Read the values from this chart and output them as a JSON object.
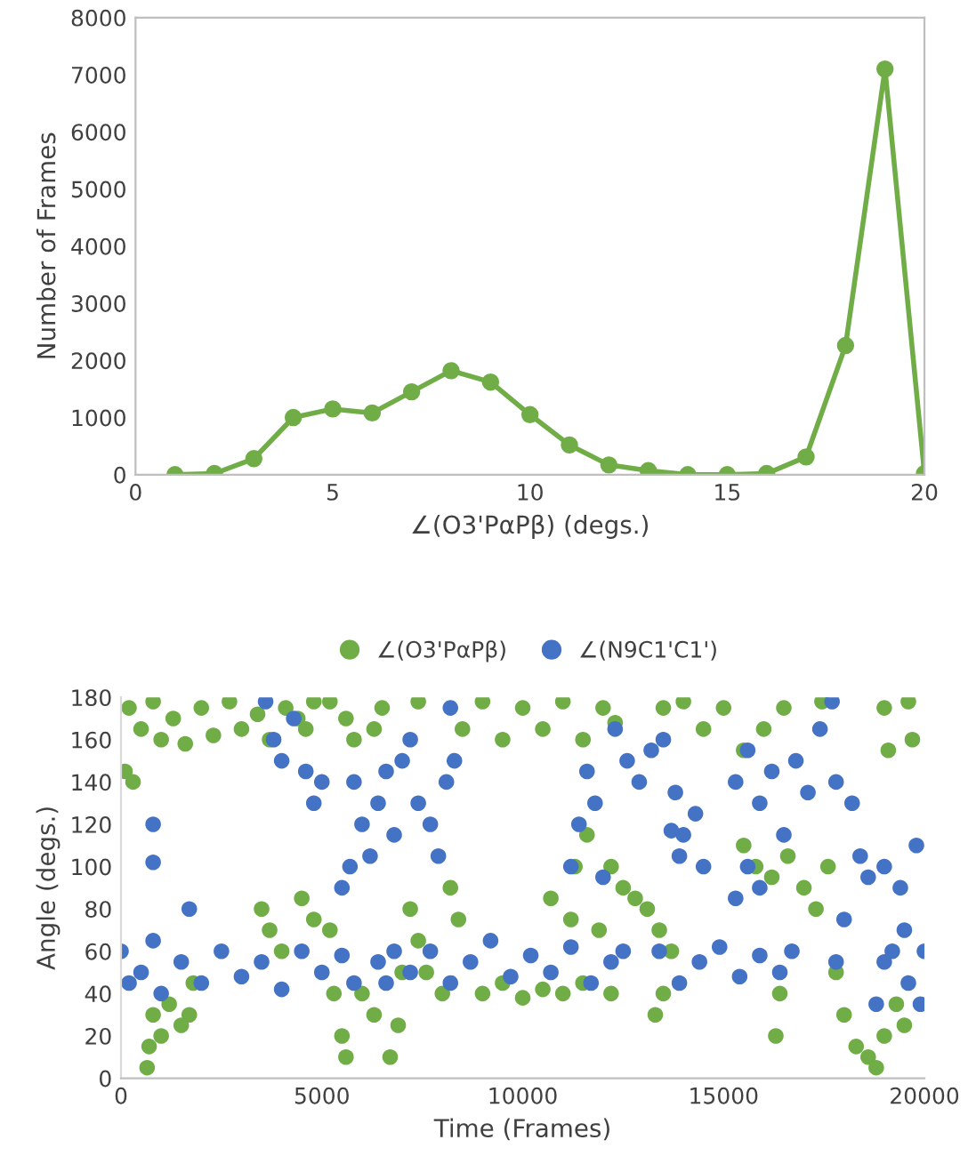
{
  "chart_data": [
    {
      "type": "line",
      "xlabel": "∠(O3'PαPβ) (degs.)",
      "ylabel": "Number of Frames",
      "marker": "circle",
      "line_style": "solid",
      "grid": false,
      "legend": false,
      "xlim": [
        0,
        20
      ],
      "xticks": [
        0,
        5,
        10,
        15,
        20
      ],
      "ylim": [
        0,
        8000
      ],
      "yticks": [
        0,
        1000,
        2000,
        3000,
        4000,
        5000,
        6000,
        7000,
        8000
      ],
      "x": [
        1,
        2,
        3,
        4,
        5,
        6,
        7,
        8,
        9,
        10,
        11,
        12,
        13,
        14,
        15,
        16,
        17,
        18,
        19,
        20
      ],
      "series": [
        {
          "color": "#70ad47",
          "values": [
            0,
            20,
            280,
            1000,
            1150,
            1080,
            1450,
            1820,
            1620,
            1050,
            520,
            170,
            70,
            0,
            0,
            20,
            310,
            2260,
            7100,
            20
          ]
        }
      ]
    },
    {
      "type": "scatter",
      "xlabel": "Time (Frames)",
      "ylabel": "Angle (degs.)",
      "marker": "circle",
      "grid": false,
      "legend": "top",
      "xlim": [
        0,
        20000
      ],
      "xticks": [
        0,
        5000,
        10000,
        15000,
        20000
      ],
      "ylim": [
        0,
        180
      ],
      "yticks": [
        0,
        20,
        40,
        60,
        80,
        100,
        120,
        140,
        160,
        180
      ],
      "series": [
        {
          "name": "∠(O3'PαPβ)",
          "color": "#70ad47",
          "x": [
            100,
            200,
            300,
            500,
            800,
            1000,
            1300,
            1600,
            2000,
            2300,
            2700,
            3000,
            3400,
            3700,
            650,
            700,
            800,
            1000,
            1200,
            1500,
            1700,
            1800,
            3500,
            3700,
            4000,
            4500,
            4800,
            5200,
            5500,
            5600,
            5300,
            4100,
            4400,
            4600,
            4800,
            5200,
            5600,
            5800,
            6300,
            6500,
            6000,
            6300,
            6700,
            6900,
            7000,
            7200,
            7400,
            7600,
            8000,
            8200,
            8400,
            7400,
            8500,
            9000,
            9500,
            10000,
            10500,
            11000,
            11500,
            12000,
            12300,
            9000,
            9500,
            10000,
            10500,
            10700,
            11000,
            11200,
            11500,
            11900,
            12200,
            11300,
            11600,
            12200,
            12500,
            12800,
            13100,
            13400,
            13700,
            13300,
            13500,
            13500,
            14000,
            14500,
            15000,
            15500,
            16000,
            16500,
            15500,
            15800,
            16200,
            16600,
            17000,
            17300,
            17600,
            16300,
            16400,
            17450,
            17800,
            18000,
            18300,
            18600,
            18800,
            19000,
            19300,
            19500,
            19000,
            19100,
            19600,
            19700
          ],
          "values": [
            145,
            175,
            140,
            165,
            178,
            160,
            170,
            158,
            175,
            162,
            178,
            165,
            172,
            160,
            5,
            15,
            30,
            20,
            35,
            25,
            30,
            45,
            80,
            70,
            60,
            85,
            75,
            70,
            20,
            10,
            40,
            175,
            170,
            165,
            178,
            178,
            170,
            160,
            165,
            175,
            40,
            30,
            10,
            25,
            50,
            80,
            65,
            50,
            40,
            90,
            75,
            178,
            165,
            178,
            160,
            175,
            165,
            178,
            160,
            175,
            168,
            40,
            45,
            38,
            42,
            85,
            40,
            75,
            45,
            70,
            40,
            100,
            115,
            100,
            90,
            85,
            80,
            70,
            60,
            30,
            40,
            175,
            178,
            165,
            175,
            155,
            165,
            175,
            110,
            100,
            95,
            105,
            90,
            80,
            100,
            20,
            40,
            178,
            50,
            30,
            15,
            10,
            5,
            20,
            35,
            25,
            175,
            155,
            178,
            160
          ]
        },
        {
          "name": "∠(N9C1'C1')",
          "color": "#4472c4",
          "x": [
            0,
            200,
            500,
            800,
            1000,
            1500,
            2000,
            2500,
            3000,
            3500,
            4000,
            4500,
            5000,
            5500,
            5800,
            800,
            800,
            1700,
            3600,
            3800,
            4000,
            4300,
            4600,
            4800,
            5000,
            5500,
            5700,
            5800,
            6000,
            6200,
            6400,
            6600,
            6800,
            7000,
            7200,
            7400,
            7700,
            7900,
            8100,
            8200,
            8300,
            6400,
            6600,
            6800,
            7200,
            7700,
            8200,
            8700,
            9200,
            9700,
            10200,
            10700,
            11200,
            11700,
            12200,
            12500,
            11200,
            11400,
            11600,
            11800,
            12000,
            12300,
            12600,
            12900,
            13200,
            13500,
            13800,
            14000,
            14300,
            14500,
            13900,
            13700,
            13400,
            13900,
            14400,
            14900,
            15400,
            15900,
            16400,
            16700,
            15300,
            15600,
            15900,
            16200,
            16500,
            16800,
            17100,
            17400,
            17700,
            17800,
            15300,
            15600,
            15900,
            17800,
            18000,
            18200,
            18400,
            18600,
            18800,
            19000,
            19200,
            19400,
            19600,
            19800,
            19900,
            20000,
            19000,
            19500
          ],
          "values": [
            60,
            45,
            50,
            65,
            40,
            55,
            45,
            60,
            48,
            55,
            42,
            60,
            50,
            58,
            45,
            102,
            120,
            80,
            178,
            160,
            150,
            170,
            145,
            130,
            140,
            90,
            100,
            140,
            120,
            105,
            130,
            145,
            115,
            150,
            160,
            130,
            120,
            105,
            140,
            175,
            150,
            55,
            45,
            60,
            50,
            60,
            45,
            55,
            65,
            48,
            58,
            50,
            62,
            45,
            55,
            60,
            100,
            120,
            145,
            130,
            95,
            165,
            150,
            140,
            155,
            160,
            135,
            115,
            125,
            100,
            105,
            117,
            60,
            45,
            55,
            62,
            48,
            58,
            50,
            60,
            140,
            155,
            130,
            145,
            115,
            150,
            135,
            165,
            178,
            140,
            85,
            100,
            90,
            55,
            75,
            130,
            105,
            95,
            35,
            100,
            60,
            90,
            45,
            110,
            35,
            60,
            55,
            70
          ]
        }
      ]
    }
  ]
}
